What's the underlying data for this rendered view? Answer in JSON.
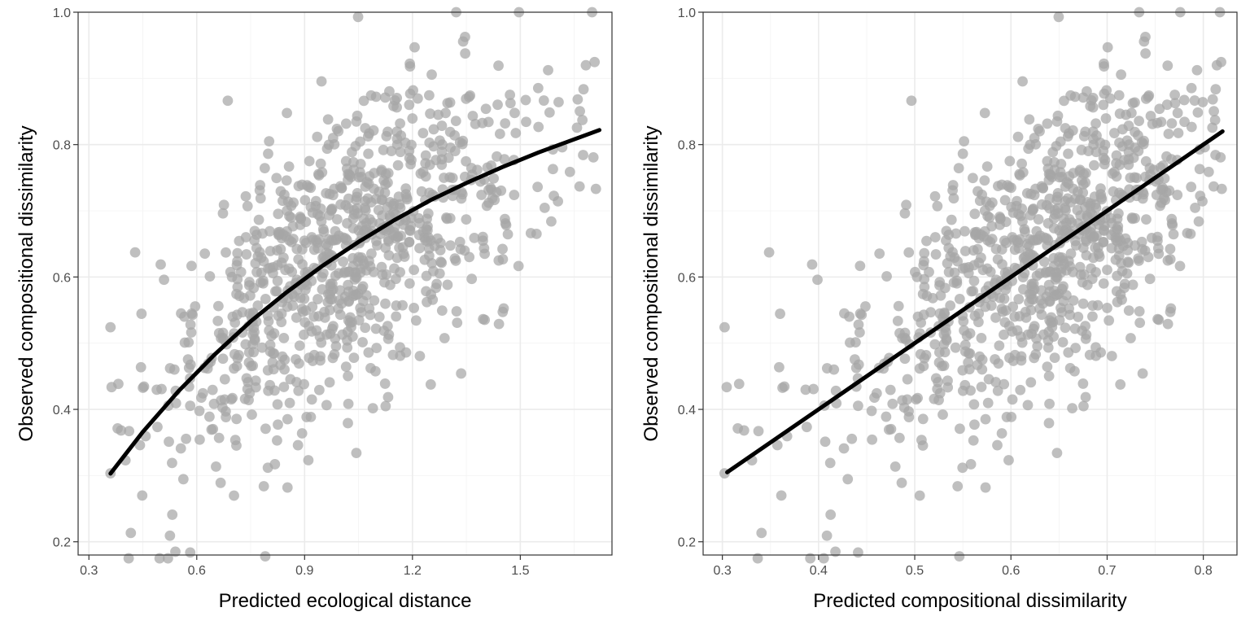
{
  "chart_data": [
    {
      "type": "scatter",
      "id": "left",
      "xlabel": "Predicted ecological distance",
      "ylabel": "Observed compositional dissimilarity",
      "xlim": [
        0.27,
        1.755
      ],
      "ylim": [
        0.18,
        1.0
      ],
      "xticks": [
        0.3,
        0.6,
        0.9,
        1.2,
        1.5
      ],
      "xtick_labels": [
        "0.3",
        "0.6",
        "0.9",
        "1.2",
        "1.5"
      ],
      "yticks": [
        0.2,
        0.4,
        0.6,
        0.8,
        1.0
      ],
      "ytick_labels": [
        "0.2",
        "0.4",
        "0.6",
        "0.8",
        "1.0"
      ],
      "point_color": "#a6a6a6",
      "line_color": "#000000",
      "n_points_approx": 900,
      "fit_curve": {
        "name": "fitted spline",
        "x": [
          0.36,
          0.45,
          0.55,
          0.65,
          0.75,
          0.85,
          0.95,
          1.05,
          1.15,
          1.25,
          1.35,
          1.45,
          1.55,
          1.65,
          1.72
        ],
        "y": [
          0.303,
          0.366,
          0.428,
          0.483,
          0.533,
          0.577,
          0.617,
          0.653,
          0.686,
          0.716,
          0.742,
          0.766,
          0.788,
          0.808,
          0.822
        ]
      },
      "sample_points": {
        "x": [
          0.36,
          0.36,
          0.38,
          0.42,
          0.45,
          0.48,
          0.5,
          0.55,
          0.58,
          0.6,
          0.62,
          0.65,
          0.7,
          0.72,
          0.75,
          0.8,
          0.82,
          0.85,
          0.88,
          0.9,
          0.92,
          0.95,
          1.0,
          1.02,
          1.05,
          1.08,
          1.1,
          1.14,
          1.18,
          1.22,
          1.25,
          1.3,
          1.35,
          1.42,
          1.48,
          1.53,
          1.6,
          1.7,
          1.72
        ],
        "y": [
          0.46,
          0.2,
          0.33,
          0.27,
          0.38,
          0.5,
          0.31,
          0.55,
          0.66,
          0.77,
          0.42,
          0.64,
          0.35,
          0.81,
          0.56,
          0.72,
          0.29,
          0.66,
          0.85,
          0.25,
          0.47,
          0.89,
          0.62,
          0.31,
          0.79,
          0.4,
          0.88,
          1.0,
          0.6,
          0.38,
          0.74,
          0.9,
          0.46,
          0.97,
          0.57,
          0.96,
          0.9,
          0.92,
          0.74
        ]
      }
    },
    {
      "type": "scatter",
      "id": "right",
      "xlabel": "Predicted compositional dissimilarity",
      "ylabel": "Observed compositional dissimilarity",
      "xlim": [
        0.28,
        0.835
      ],
      "ylim": [
        0.18,
        1.0
      ],
      "xticks": [
        0.3,
        0.4,
        0.5,
        0.6,
        0.7,
        0.8
      ],
      "xtick_labels": [
        "0.3",
        "0.4",
        "0.5",
        "0.6",
        "0.7",
        "0.8"
      ],
      "yticks": [
        0.2,
        0.4,
        0.6,
        0.8,
        1.0
      ],
      "ytick_labels": [
        "0.2",
        "0.4",
        "0.6",
        "0.8",
        "1.0"
      ],
      "point_color": "#a6a6a6",
      "line_color": "#000000",
      "n_points_approx": 900,
      "fit_curve": {
        "name": "1:1 fitted line",
        "x": [
          0.305,
          0.82
        ],
        "y": [
          0.305,
          0.82
        ]
      },
      "sample_points": {
        "x": [
          0.305,
          0.305,
          0.32,
          0.35,
          0.38,
          0.4,
          0.42,
          0.45,
          0.46,
          0.48,
          0.5,
          0.52,
          0.55,
          0.56,
          0.58,
          0.6,
          0.62,
          0.64,
          0.65,
          0.66,
          0.68,
          0.7,
          0.72,
          0.74,
          0.75,
          0.76,
          0.78,
          0.8,
          0.82
        ],
        "y": [
          0.46,
          0.2,
          0.22,
          0.3,
          0.25,
          0.44,
          0.33,
          0.66,
          0.77,
          0.35,
          0.6,
          0.81,
          0.27,
          0.86,
          0.45,
          0.25,
          0.89,
          0.38,
          0.92,
          0.55,
          1.0,
          0.73,
          0.94,
          0.5,
          0.97,
          0.86,
          0.93,
          0.9,
          0.74
        ]
      }
    }
  ]
}
